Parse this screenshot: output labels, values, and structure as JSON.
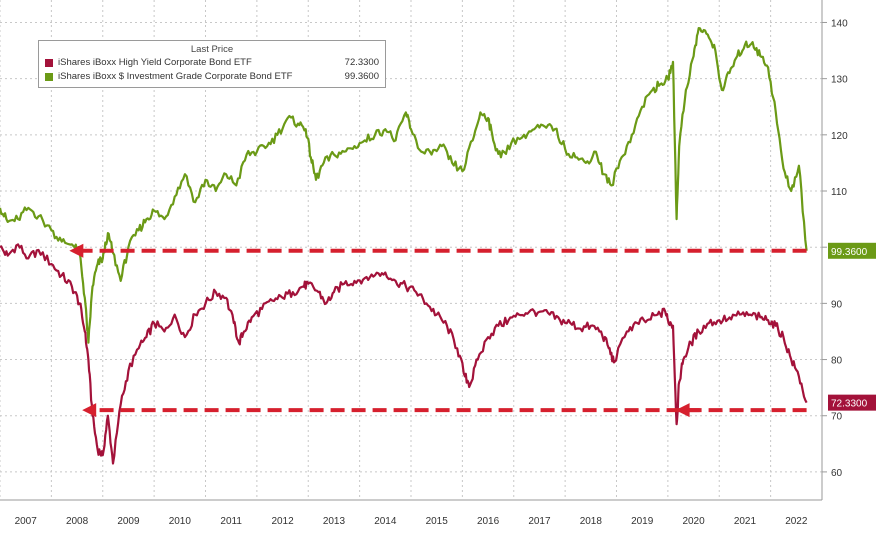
{
  "chart_data": {
    "type": "line",
    "title": "",
    "xlabel": "",
    "ylabel": "",
    "legend_title": "Last Price",
    "legend_position": "top-left",
    "grid": true,
    "y_axis_side": "right",
    "ylim": [
      55,
      144
    ],
    "x_range": [
      2007.0,
      2023.0
    ],
    "y_ticks": [
      60,
      70,
      80,
      90,
      100,
      110,
      120,
      130,
      140
    ],
    "y_tick_labels": [
      "60",
      "70",
      "80",
      "90",
      "",
      "110",
      "120",
      "130",
      "140"
    ],
    "x_tick_labels": [
      "2007",
      "2008",
      "2009",
      "2010",
      "2011",
      "2012",
      "2013",
      "2014",
      "2015",
      "2016",
      "2017",
      "2018",
      "2019",
      "2020",
      "2021",
      "2022"
    ],
    "series": [
      {
        "name": "iShares iBoxx High Yield Corporate Bond ETF",
        "last_price": "72.3300",
        "color": "#a3123a",
        "x": [
          2007.0,
          2007.15,
          2007.35,
          2007.55,
          2007.75,
          2008.0,
          2008.2,
          2008.4,
          2008.55,
          2008.65,
          2008.72,
          2008.8,
          2008.9,
          2009.0,
          2009.1,
          2009.2,
          2009.35,
          2009.5,
          2009.7,
          2009.85,
          2010.0,
          2010.2,
          2010.4,
          2010.6,
          2010.8,
          2011.0,
          2011.2,
          2011.4,
          2011.55,
          2011.65,
          2011.75,
          2011.9,
          2012.1,
          2012.3,
          2012.5,
          2012.7,
          2012.9,
          2013.0,
          2013.2,
          2013.35,
          2013.5,
          2013.7,
          2013.9,
          2014.1,
          2014.3,
          2014.5,
          2014.7,
          2014.9,
          2015.1,
          2015.3,
          2015.5,
          2015.7,
          2015.9,
          2016.05,
          2016.15,
          2016.3,
          2016.5,
          2016.7,
          2016.9,
          2017.1,
          2017.3,
          2017.5,
          2017.7,
          2017.9,
          2018.1,
          2018.3,
          2018.5,
          2018.7,
          2018.85,
          2018.95,
          2019.2,
          2019.4,
          2019.6,
          2019.8,
          2019.95,
          2020.0,
          2020.1,
          2020.17,
          2020.22,
          2020.3,
          2020.45,
          2020.6,
          2020.8,
          2021.0,
          2021.2,
          2021.4,
          2021.6,
          2021.8,
          2021.95,
          2022.1,
          2022.25,
          2022.4,
          2022.55,
          2022.7
        ],
        "values": [
          100.0,
          98.5,
          100.5,
          98.0,
          99.5,
          97.0,
          95.0,
          93.0,
          90.0,
          85.0,
          80.0,
          70.0,
          64.0,
          63.0,
          70.0,
          61.5,
          72.0,
          78.0,
          82.0,
          84.0,
          86.5,
          85.0,
          88.0,
          84.0,
          88.0,
          90.0,
          92.0,
          91.0,
          86.5,
          83.0,
          85.0,
          87.5,
          89.0,
          90.5,
          91.0,
          92.0,
          93.0,
          93.5,
          92.0,
          90.0,
          92.0,
          93.5,
          94.0,
          94.5,
          95.0,
          95.5,
          94.0,
          93.0,
          92.0,
          90.0,
          88.0,
          86.0,
          82.0,
          77.0,
          75.5,
          80.0,
          84.0,
          86.0,
          87.0,
          88.0,
          88.5,
          88.5,
          88.0,
          87.0,
          86.5,
          85.5,
          86.0,
          85.0,
          82.0,
          79.5,
          85.0,
          86.5,
          87.0,
          88.0,
          88.5,
          87.0,
          86.0,
          68.5,
          76.0,
          80.0,
          83.0,
          85.0,
          86.5,
          87.0,
          87.5,
          88.0,
          88.0,
          87.5,
          87.0,
          86.0,
          84.0,
          80.0,
          77.0,
          72.33
        ]
      },
      {
        "name": "iShares iBoxx $ Investment Grade Corporate Bond ETF",
        "last_price": "99.3600",
        "color": "#6b9a16",
        "x": [
          2007.0,
          2007.15,
          2007.35,
          2007.55,
          2007.75,
          2008.0,
          2008.2,
          2008.4,
          2008.55,
          2008.65,
          2008.72,
          2008.8,
          2008.9,
          2009.0,
          2009.1,
          2009.2,
          2009.35,
          2009.5,
          2009.7,
          2009.85,
          2010.0,
          2010.2,
          2010.4,
          2010.6,
          2010.8,
          2011.0,
          2011.2,
          2011.4,
          2011.6,
          2011.8,
          2012.0,
          2012.2,
          2012.4,
          2012.6,
          2012.8,
          2012.95,
          2013.05,
          2013.15,
          2013.3,
          2013.5,
          2013.7,
          2013.9,
          2014.1,
          2014.3,
          2014.5,
          2014.7,
          2014.9,
          2015.0,
          2015.2,
          2015.4,
          2015.6,
          2015.8,
          2016.0,
          2016.2,
          2016.35,
          2016.5,
          2016.6,
          2016.75,
          2016.95,
          2017.2,
          2017.4,
          2017.6,
          2017.8,
          2018.0,
          2018.2,
          2018.4,
          2018.6,
          2018.75,
          2018.9,
          2019.1,
          2019.3,
          2019.5,
          2019.7,
          2019.85,
          2020.0,
          2020.1,
          2020.17,
          2020.22,
          2020.35,
          2020.5,
          2020.6,
          2020.75,
          2020.9,
          2021.05,
          2021.2,
          2021.35,
          2021.5,
          2021.65,
          2021.8,
          2021.95,
          2022.1,
          2022.25,
          2022.4,
          2022.55,
          2022.7
        ],
        "values": [
          107.0,
          104.5,
          105.0,
          107.0,
          105.5,
          103.0,
          101.0,
          100.5,
          99.0,
          91.0,
          83.0,
          93.0,
          97.0,
          98.0,
          102.5,
          99.0,
          94.0,
          100.0,
          103.0,
          105.0,
          106.5,
          105.0,
          109.0,
          113.0,
          108.0,
          112.0,
          110.0,
          113.0,
          111.0,
          116.5,
          117.0,
          118.0,
          120.0,
          123.0,
          122.0,
          121.0,
          116.0,
          112.0,
          115.0,
          116.5,
          117.0,
          118.0,
          119.0,
          120.0,
          121.0,
          119.0,
          124.0,
          121.0,
          117.0,
          116.5,
          118.0,
          115.0,
          113.5,
          119.0,
          124.0,
          123.0,
          119.0,
          116.0,
          118.5,
          120.0,
          121.0,
          121.5,
          121.0,
          117.5,
          116.0,
          115.0,
          117.0,
          113.0,
          111.0,
          116.0,
          120.0,
          125.0,
          128.0,
          129.0,
          130.0,
          133.0,
          105.0,
          118.0,
          128.0,
          134.0,
          139.0,
          138.0,
          136.0,
          128.0,
          131.0,
          134.0,
          136.0,
          136.5,
          134.0,
          132.0,
          124.0,
          114.0,
          110.0,
          114.5,
          99.36
        ]
      }
    ],
    "annotations": [
      {
        "type": "dashed-arrow",
        "y": 99.36,
        "from_x": 2022.7,
        "to_x": 2008.35,
        "color": "#d6202e"
      },
      {
        "type": "dashed-arrow",
        "y": 71.0,
        "from_x": 2022.7,
        "to_x": 2008.6,
        "color": "#d6202e"
      },
      {
        "type": "dashed-arrow",
        "y": 71.0,
        "from_x": 2020.62,
        "to_x": 2020.15,
        "color": "#d6202e"
      }
    ]
  }
}
